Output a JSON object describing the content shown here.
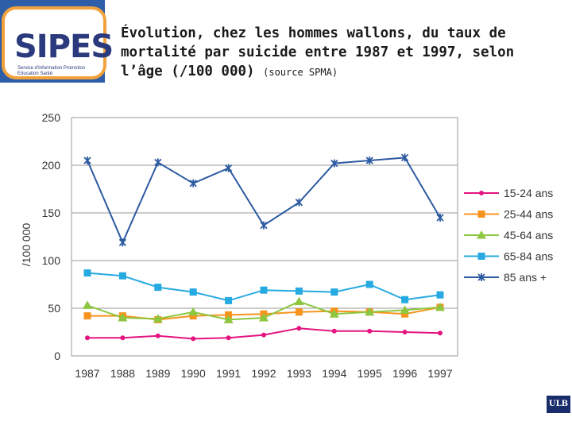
{
  "logo": {
    "text": "SIPES",
    "subtitle": "Service d'Information Promotion Education Santé"
  },
  "header": {
    "title": "Évolution, chez les hommes wallons, du taux de mortalité par suicide entre 1987 et 1997, selon l’âge (/100 000)",
    "source": "(source SPMA)"
  },
  "footer": {
    "badge": "ULB"
  },
  "colors": {
    "header_band": "#2f5ea8",
    "logo_accent": "#f2a23c",
    "grid": "#9a9a9a"
  },
  "chart_data": {
    "type": "line",
    "title": "",
    "xlabel": "",
    "ylabel": "/100 000",
    "ylim": [
      0,
      250
    ],
    "yticks": [
      0,
      50,
      100,
      150,
      200,
      250
    ],
    "grid": true,
    "legend_position": "right",
    "categories": [
      "1987",
      "1988",
      "1989",
      "1990",
      "1991",
      "1992",
      "1993",
      "1994",
      "1995",
      "1996",
      "1997"
    ],
    "series": [
      {
        "name": "15-24 ans",
        "color": "#e4147f",
        "marker": "circle",
        "values": [
          19,
          19,
          21,
          18,
          19,
          22,
          29,
          26,
          26,
          25,
          24
        ]
      },
      {
        "name": "25-44 ans",
        "color": "#f7941d",
        "marker": "square",
        "values": [
          42,
          42,
          38,
          42,
          43,
          44,
          46,
          47,
          46,
          44,
          51
        ]
      },
      {
        "name": "45-64 ans",
        "color": "#8dc63f",
        "marker": "triangle",
        "values": [
          53,
          40,
          39,
          46,
          38,
          40,
          57,
          44,
          46,
          48,
          51
        ]
      },
      {
        "name": "65-84 ans",
        "color": "#27aae1",
        "marker": "square",
        "values": [
          87,
          84,
          72,
          67,
          58,
          69,
          68,
          67,
          75,
          59,
          64
        ]
      },
      {
        "name": "85 ans +",
        "color": "#2c5aa0",
        "marker": "star",
        "values": [
          205,
          119,
          203,
          181,
          197,
          137,
          161,
          202,
          205,
          208,
          145
        ]
      }
    ]
  }
}
